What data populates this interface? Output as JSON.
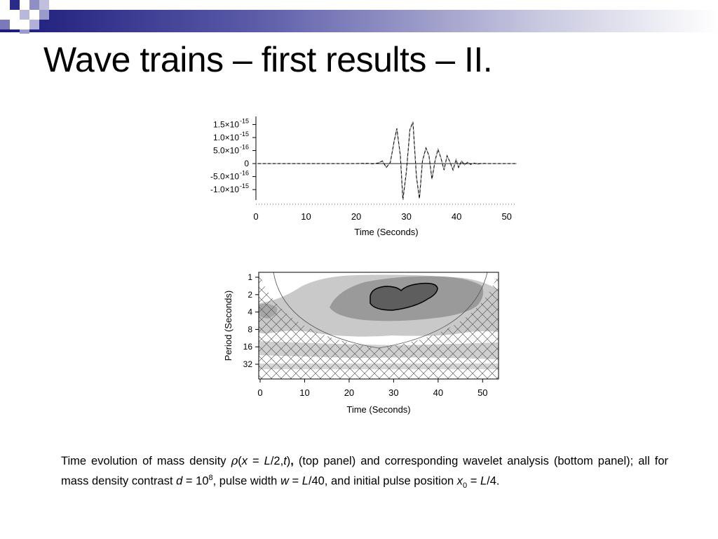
{
  "slide": {
    "title": "Wave trains – first results – II."
  },
  "top_panel": {
    "chart_data": {
      "type": "line",
      "xlabel": "Time (Seconds)",
      "ylabel": "",
      "xlim": [
        0,
        52
      ],
      "ylim": [
        -1.4e-15,
        1.7e-15
      ],
      "x_ticks": [
        0,
        10,
        20,
        30,
        40,
        50
      ],
      "y_ticks": [
        {
          "value": 1.5e-15,
          "mantissa": "1.5×10",
          "exp": "-15"
        },
        {
          "value": 1e-15,
          "mantissa": "1.0×10",
          "exp": "-15"
        },
        {
          "value": 5e-16,
          "mantissa": "5.0×10",
          "exp": "-16"
        },
        {
          "value": 0,
          "mantissa": "0",
          "exp": ""
        },
        {
          "value": -5e-16,
          "mantissa": "-5.0×10",
          "exp": "-16"
        },
        {
          "value": -1e-15,
          "mantissa": "-1.0×10",
          "exp": "-15"
        }
      ],
      "series": [
        {
          "x": [
            0,
            15,
            17,
            20,
            22,
            23.5,
            24.5,
            25.2,
            26,
            26.8,
            27.5,
            28.1,
            28.8,
            29.3,
            30.0,
            30.7,
            31.3,
            32.0,
            32.6,
            33.2,
            33.9,
            34.5,
            35.1,
            35.7,
            36.3,
            36.9,
            37.5,
            38.1,
            38.7,
            39.3,
            39.9,
            40.4,
            41.0,
            41.6,
            42.2,
            42.8,
            43.5,
            44.2,
            45.0,
            46.0,
            47.5,
            49,
            52
          ],
          "y": [
            0,
            0,
            0,
            0,
            1e-17,
            -1e-17,
            3e-17,
            1e-16,
            -1.5e-16,
            5e-17,
            8e-16,
            1.35e-15,
            3e-16,
            -1.4e-15,
            -3e-16,
            1.3e-15,
            1.6e-15,
            -5e-16,
            -1.35e-15,
            1e-16,
            6e-16,
            3e-16,
            -6e-16,
            1e-16,
            5.5e-16,
            2e-16,
            -2.5e-16,
            3e-16,
            5e-17,
            -2.5e-16,
            1.5e-16,
            -1.5e-16,
            1e-16,
            -5e-17,
            5e-17,
            -3e-17,
            2e-17,
            -2e-17,
            1e-17,
            0,
            0,
            0,
            0
          ]
        }
      ]
    }
  },
  "bottom_panel": {
    "chart_data": {
      "type": "heatmap",
      "xlabel": "Time (Seconds)",
      "ylabel": "Period (Seconds)",
      "xlim": [
        0,
        52
      ],
      "x_ticks": [
        0,
        10,
        20,
        30,
        40,
        50
      ],
      "y_ticks": [
        "1",
        "2",
        "4",
        "8",
        "16",
        "32"
      ]
    }
  },
  "caption": {
    "p1": "Time evolution of mass density ",
    "rho": "ρ",
    "p2": "(",
    "x": "x",
    "p3": " = ",
    "L1": "L",
    "p4": "/2,",
    "t": "t",
    "p5": ")",
    "comma": ",",
    "p6": "  (top panel) and corresponding wavelet analysis (bottom panel); all for mass density contrast ",
    "d": "d",
    "p7": " = 10",
    "exp8": "8",
    "p8": ", pulse width ",
    "w": "w",
    "p9": " = ",
    "L2": "L",
    "p10": "/40, and initial pulse position ",
    "x0": "x",
    "sub0": "0",
    "p11": " = ",
    "L3": "L",
    "p12": "/4."
  }
}
